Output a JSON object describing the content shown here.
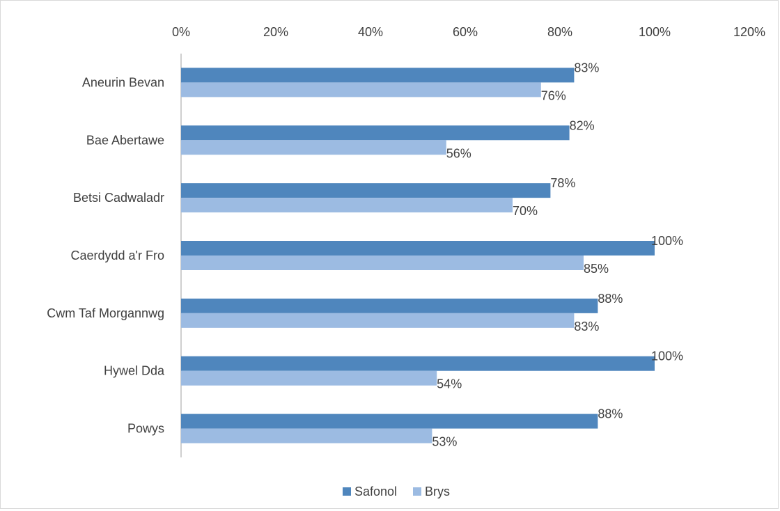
{
  "chart_data": {
    "type": "bar",
    "orientation": "horizontal",
    "title": "",
    "xlabel": "",
    "ylabel": "",
    "categories": [
      "Aneurin Bevan",
      "Bae Abertawe",
      "Betsi Cadwaladr",
      "Caerdydd a'r Fro",
      "Cwm Taf Morgannwg",
      "Hywel Dda",
      "Powys"
    ],
    "series": [
      {
        "name": "Safonol",
        "values": [
          83,
          82,
          78,
          100,
          88,
          100,
          88
        ],
        "labels": [
          "83%",
          "82%",
          "78%",
          "100%",
          "88%",
          "100%",
          "88%"
        ],
        "color": "#4f86bd"
      },
      {
        "name": "Brys",
        "values": [
          76,
          56,
          70,
          85,
          83,
          54,
          53
        ],
        "labels": [
          "76%",
          "56%",
          "70%",
          "85%",
          "83%",
          "54%",
          "53%"
        ],
        "color": "#9cbbe2"
      }
    ],
    "xlim": [
      0,
      120
    ],
    "xticks": [
      0,
      20,
      40,
      60,
      80,
      100,
      120
    ],
    "xtick_labels": [
      "0%",
      "20%",
      "40%",
      "60%",
      "80%",
      "100%",
      "120%"
    ],
    "grid": false,
    "axis_position": "top",
    "legend_position": "bottom",
    "axis_line_color": "#bfbfbf",
    "text_color": "#404040"
  }
}
